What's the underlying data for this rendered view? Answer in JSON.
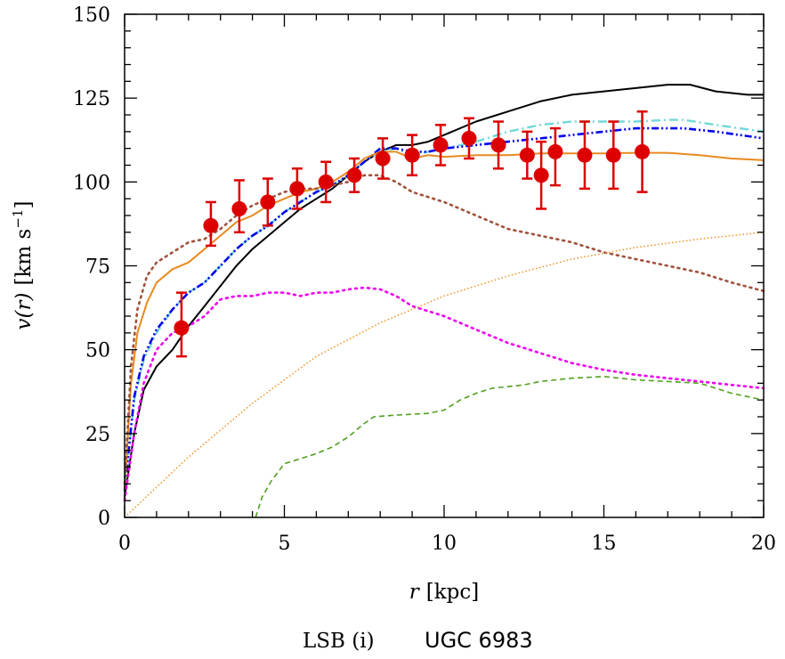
{
  "chart_data": {
    "type": "line",
    "xlabel_var": "r",
    "xlabel_unit": "[kpc]",
    "ylabel_var": "v(r)",
    "ylabel_unit": "[km s",
    "ylabel_exp": "−1",
    "ylabel_close": "]",
    "caption_left": "LSB (i)",
    "caption_right": "UGC 6983",
    "xlim": [
      0,
      20
    ],
    "ylim": [
      0,
      150
    ],
    "xticks": [
      0,
      5,
      10,
      15,
      20
    ],
    "yticks": [
      0,
      25,
      50,
      75,
      100,
      125,
      150
    ],
    "grid": false,
    "observed": {
      "color": "#dd0000",
      "points": [
        {
          "r": 1.78,
          "v": 56.5,
          "lo": 48,
          "hi": 67
        },
        {
          "r": 2.7,
          "v": 87,
          "lo": 81,
          "hi": 94
        },
        {
          "r": 3.59,
          "v": 92,
          "lo": 85,
          "hi": 100.5
        },
        {
          "r": 4.48,
          "v": 94,
          "lo": 87,
          "hi": 101
        },
        {
          "r": 5.4,
          "v": 98,
          "lo": 92,
          "hi": 104
        },
        {
          "r": 6.3,
          "v": 100,
          "lo": 94,
          "hi": 106
        },
        {
          "r": 7.19,
          "v": 102,
          "lo": 97,
          "hi": 107
        },
        {
          "r": 8.08,
          "v": 107,
          "lo": 101,
          "hi": 113
        },
        {
          "r": 9.0,
          "v": 108,
          "lo": 102,
          "hi": 114
        },
        {
          "r": 9.89,
          "v": 111,
          "lo": 105,
          "hi": 117
        },
        {
          "r": 10.78,
          "v": 113,
          "lo": 107,
          "hi": 119
        },
        {
          "r": 11.7,
          "v": 111,
          "lo": 104,
          "hi": 118
        },
        {
          "r": 12.6,
          "v": 108,
          "lo": 101,
          "hi": 115
        },
        {
          "r": 13.04,
          "v": 102,
          "lo": 92,
          "hi": 112
        },
        {
          "r": 13.48,
          "v": 109,
          "lo": 99,
          "hi": 116
        },
        {
          "r": 14.4,
          "v": 108,
          "lo": 98,
          "hi": 118
        },
        {
          "r": 15.3,
          "v": 108,
          "lo": 98,
          "hi": 118
        },
        {
          "r": 16.2,
          "v": 109,
          "lo": 97,
          "hi": 121
        }
      ]
    },
    "series": [
      {
        "color": "#000000",
        "style": "solid",
        "points": [
          [
            0,
            6
          ],
          [
            0.3,
            25
          ],
          [
            0.6,
            38
          ],
          [
            1,
            45
          ],
          [
            1.5,
            50
          ],
          [
            2,
            57
          ],
          [
            2.5,
            63
          ],
          [
            3,
            69
          ],
          [
            3.5,
            75
          ],
          [
            4,
            80
          ],
          [
            4.5,
            84
          ],
          [
            5,
            88
          ],
          [
            5.5,
            92
          ],
          [
            6,
            95
          ],
          [
            6.5,
            98
          ],
          [
            7,
            102
          ],
          [
            7.5,
            106
          ],
          [
            8,
            109
          ],
          [
            8.5,
            111
          ],
          [
            9,
            111
          ],
          [
            9.5,
            112
          ],
          [
            10,
            114
          ],
          [
            11,
            118
          ],
          [
            12,
            121
          ],
          [
            13,
            124
          ],
          [
            14,
            126
          ],
          [
            15,
            127
          ],
          [
            16,
            128
          ],
          [
            17,
            129
          ],
          [
            17.7,
            129
          ],
          [
            18.5,
            127
          ],
          [
            19.5,
            126
          ],
          [
            20,
            126
          ]
        ]
      },
      {
        "color": "#70d8d8",
        "style": "dashdot",
        "points": [
          [
            0,
            8
          ],
          [
            0.3,
            35
          ],
          [
            0.6,
            47
          ],
          [
            1,
            55
          ],
          [
            1.5,
            62
          ],
          [
            2,
            67
          ],
          [
            2.5,
            70
          ],
          [
            3,
            75
          ],
          [
            3.5,
            80
          ],
          [
            4,
            84
          ],
          [
            4.5,
            87
          ],
          [
            5,
            91
          ],
          [
            5.5,
            94
          ],
          [
            6,
            97
          ],
          [
            6.5,
            99
          ],
          [
            7,
            102
          ],
          [
            7.5,
            106
          ],
          [
            8,
            109
          ],
          [
            8.5,
            110
          ],
          [
            9,
            108
          ],
          [
            9.5,
            109
          ],
          [
            10,
            110
          ],
          [
            11,
            112
          ],
          [
            12,
            115
          ],
          [
            13,
            117
          ],
          [
            14,
            118
          ],
          [
            15,
            118
          ],
          [
            16,
            118
          ],
          [
            17,
            118.5
          ],
          [
            17.5,
            118.5
          ],
          [
            18.5,
            117
          ],
          [
            20,
            115
          ]
        ]
      },
      {
        "color": "#0000ee",
        "style": "dashdotdot",
        "points": [
          [
            0,
            8
          ],
          [
            0.3,
            36
          ],
          [
            0.6,
            48
          ],
          [
            1,
            56
          ],
          [
            1.5,
            62
          ],
          [
            2,
            67
          ],
          [
            2.5,
            70
          ],
          [
            3,
            75
          ],
          [
            3.5,
            80
          ],
          [
            4,
            84
          ],
          [
            4.5,
            87
          ],
          [
            5,
            91
          ],
          [
            5.5,
            94
          ],
          [
            6,
            97
          ],
          [
            6.5,
            99
          ],
          [
            7,
            102
          ],
          [
            7.5,
            106
          ],
          [
            8,
            110
          ],
          [
            8.5,
            110
          ],
          [
            9,
            109
          ],
          [
            9.5,
            109
          ],
          [
            10,
            110
          ],
          [
            11,
            111
          ],
          [
            12,
            112
          ],
          [
            13,
            113
          ],
          [
            14,
            114
          ],
          [
            15,
            115
          ],
          [
            16,
            116
          ],
          [
            17,
            116
          ],
          [
            17.5,
            116
          ],
          [
            18.5,
            115
          ],
          [
            20,
            113
          ]
        ]
      },
      {
        "color": "#e88a20",
        "style": "solid",
        "points": [
          [
            0,
            8
          ],
          [
            0.2,
            40
          ],
          [
            0.4,
            55
          ],
          [
            0.7,
            64
          ],
          [
            1,
            70
          ],
          [
            1.5,
            74
          ],
          [
            2,
            76
          ],
          [
            2.5,
            80
          ],
          [
            3,
            84
          ],
          [
            3.5,
            88
          ],
          [
            4,
            90
          ],
          [
            4.5,
            93
          ],
          [
            5,
            95
          ],
          [
            5.5,
            97
          ],
          [
            6,
            98
          ],
          [
            6.5,
            100
          ],
          [
            7,
            103
          ],
          [
            7.5,
            107
          ],
          [
            8,
            109
          ],
          [
            8.5,
            109
          ],
          [
            9,
            107
          ],
          [
            9.5,
            108
          ],
          [
            10,
            107.5
          ],
          [
            11,
            108
          ],
          [
            12,
            108
          ],
          [
            13,
            108.5
          ],
          [
            14,
            108.5
          ],
          [
            15,
            108.5
          ],
          [
            16,
            108.7
          ],
          [
            17,
            108.7
          ],
          [
            18,
            108
          ],
          [
            19,
            107
          ],
          [
            20,
            106.5
          ]
        ]
      },
      {
        "color": "#a0523c",
        "style": "dotted",
        "points": [
          [
            0,
            10
          ],
          [
            0.2,
            45
          ],
          [
            0.4,
            62
          ],
          [
            0.7,
            72
          ],
          [
            1,
            76
          ],
          [
            1.5,
            79
          ],
          [
            2,
            82
          ],
          [
            2.5,
            83
          ],
          [
            3,
            86
          ],
          [
            3.5,
            90
          ],
          [
            4,
            93
          ],
          [
            4.5,
            95
          ],
          [
            5,
            97
          ],
          [
            5.5,
            98
          ],
          [
            6,
            98
          ],
          [
            6.5,
            99
          ],
          [
            7,
            100
          ],
          [
            7.5,
            102
          ],
          [
            8,
            102
          ],
          [
            8.5,
            100
          ],
          [
            9,
            97
          ],
          [
            10,
            94
          ],
          [
            11,
            90
          ],
          [
            12,
            86
          ],
          [
            13,
            84
          ],
          [
            14,
            82
          ],
          [
            15,
            79
          ],
          [
            16,
            77
          ],
          [
            17,
            75
          ],
          [
            18,
            73
          ],
          [
            19,
            70
          ],
          [
            20,
            67.5
          ]
        ]
      },
      {
        "color": "#ee00ee",
        "style": "dotted",
        "points": [
          [
            0,
            5
          ],
          [
            0.3,
            25
          ],
          [
            0.6,
            40
          ],
          [
            1,
            50
          ],
          [
            1.5,
            55
          ],
          [
            2,
            57
          ],
          [
            2.5,
            60
          ],
          [
            3,
            65
          ],
          [
            3.5,
            66
          ],
          [
            4,
            66
          ],
          [
            4.5,
            67
          ],
          [
            5,
            67
          ],
          [
            5.5,
            66
          ],
          [
            6,
            67
          ],
          [
            6.5,
            67
          ],
          [
            7,
            68
          ],
          [
            7.5,
            68.5
          ],
          [
            8,
            68
          ],
          [
            8.5,
            66
          ],
          [
            9,
            63
          ],
          [
            10,
            60
          ],
          [
            11,
            56
          ],
          [
            12,
            52
          ],
          [
            13,
            49
          ],
          [
            14,
            46
          ],
          [
            15,
            44
          ],
          [
            16,
            42.5
          ],
          [
            17,
            41.5
          ],
          [
            18,
            40.5
          ],
          [
            19,
            39.5
          ],
          [
            20,
            38.5
          ]
        ]
      },
      {
        "color": "#f09020",
        "style": "finedotted",
        "points": [
          [
            0,
            0
          ],
          [
            2,
            18
          ],
          [
            4,
            34
          ],
          [
            6,
            48
          ],
          [
            8,
            58
          ],
          [
            10,
            66
          ],
          [
            12,
            72
          ],
          [
            14,
            77
          ],
          [
            16,
            80.5
          ],
          [
            18,
            83
          ],
          [
            20,
            85
          ]
        ]
      },
      {
        "color": "#50a020",
        "style": "dashed",
        "points": [
          [
            4.1,
            0
          ],
          [
            4.3,
            6
          ],
          [
            4.6,
            11
          ],
          [
            5,
            16
          ],
          [
            5.5,
            17.5
          ],
          [
            6,
            19
          ],
          [
            6.5,
            21
          ],
          [
            7,
            24
          ],
          [
            7.5,
            28
          ],
          [
            7.8,
            30
          ],
          [
            8.5,
            30.5
          ],
          [
            9.5,
            31
          ],
          [
            10,
            32
          ],
          [
            10.5,
            35
          ],
          [
            11,
            37
          ],
          [
            11.5,
            38.5
          ],
          [
            12,
            39
          ],
          [
            12.5,
            39.5
          ],
          [
            13,
            40.5
          ],
          [
            14,
            41.5
          ],
          [
            15,
            42
          ],
          [
            16,
            41
          ],
          [
            17,
            40.5
          ],
          [
            18,
            40
          ],
          [
            19,
            37
          ],
          [
            20,
            35
          ]
        ]
      }
    ]
  }
}
